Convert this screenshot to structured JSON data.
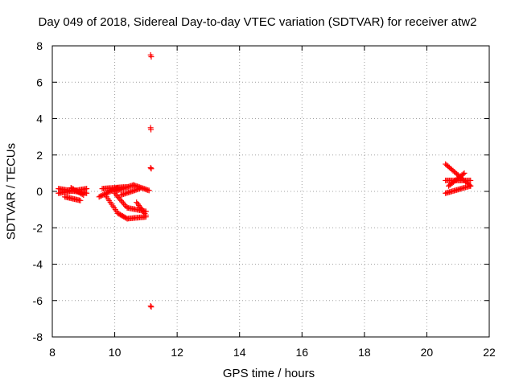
{
  "chart_data": {
    "type": "scatter",
    "title": "Day 049 of 2018, Sidereal Day-to-day VTEC variation (SDTVAR) for receiver atw2",
    "xlabel": "GPS time / hours",
    "ylabel": "SDTVAR / TECUs",
    "xlim": [
      8,
      22
    ],
    "ylim": [
      -8,
      8
    ],
    "xticks": [
      "8",
      "10",
      "12",
      "14",
      "16",
      "18",
      "20",
      "22"
    ],
    "yticks": [
      "-8",
      "-6",
      "-4",
      "-2",
      "0",
      "2",
      "4",
      "6",
      "8"
    ],
    "grid": true,
    "marker": "+",
    "color": "#ff0000",
    "series": [
      {
        "name": "SDTVAR",
        "segments": [
          {
            "x0": 8.2,
            "x1": 9.1,
            "y0": 0.15,
            "y1": -0.1
          },
          {
            "x0": 8.2,
            "x1": 9.1,
            "y0": -0.1,
            "y1": 0.15
          },
          {
            "x0": 8.4,
            "x1": 8.9,
            "y0": -0.3,
            "y1": -0.5
          },
          {
            "x0": 8.6,
            "x1": 9.0,
            "y0": 0.2,
            "y1": -0.2
          },
          {
            "x0": 9.5,
            "x1": 10.1,
            "y0": -0.3,
            "y1": 0.2
          },
          {
            "x0": 9.6,
            "x1": 10.4,
            "y0": 0.15,
            "y1": 0.25
          },
          {
            "x0": 9.7,
            "x1": 10.1,
            "y0": -0.2,
            "y1": -1.2
          },
          {
            "x0": 10.1,
            "x1": 10.4,
            "y0": -1.2,
            "y1": -1.5
          },
          {
            "x0": 10.4,
            "x1": 11.0,
            "y0": -1.5,
            "y1": -1.4
          },
          {
            "x0": 10.0,
            "x1": 10.4,
            "y0": -0.1,
            "y1": -0.9
          },
          {
            "x0": 10.4,
            "x1": 11.0,
            "y0": -0.9,
            "y1": -1.1
          },
          {
            "x0": 10.0,
            "x1": 10.6,
            "y0": 0.0,
            "y1": 0.35
          },
          {
            "x0": 10.6,
            "x1": 11.1,
            "y0": 0.35,
            "y1": 0.05
          },
          {
            "x0": 10.2,
            "x1": 10.8,
            "y0": -0.2,
            "y1": 0.15
          },
          {
            "x0": 10.7,
            "x1": 11.0,
            "y0": -0.6,
            "y1": -1.3
          },
          {
            "x0": 20.6,
            "x1": 21.4,
            "y0": 1.5,
            "y1": 0.3
          },
          {
            "x0": 20.6,
            "x1": 21.4,
            "y0": 0.6,
            "y1": 0.6
          },
          {
            "x0": 20.6,
            "x1": 21.4,
            "y0": -0.1,
            "y1": 0.3
          },
          {
            "x0": 20.7,
            "x1": 21.2,
            "y0": 0.3,
            "y1": 1.0
          }
        ],
        "points": [
          [
            11.15,
            7.5
          ],
          [
            11.17,
            7.4
          ],
          [
            11.15,
            3.5
          ],
          [
            11.16,
            3.4
          ],
          [
            11.15,
            1.3
          ],
          [
            11.17,
            1.25
          ],
          [
            11.15,
            -6.3
          ],
          [
            11.17,
            -6.35
          ]
        ]
      }
    ]
  }
}
